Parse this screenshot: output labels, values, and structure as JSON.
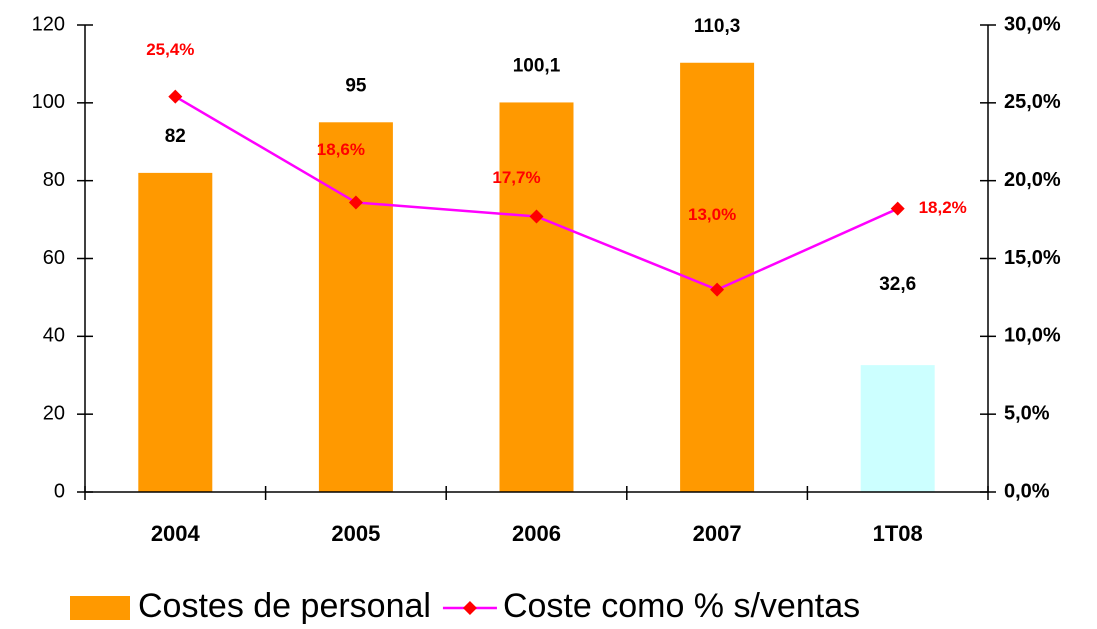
{
  "chart_data": {
    "type": "bar",
    "categories": [
      "2004",
      "2005",
      "2006",
      "2007",
      "1T08"
    ],
    "series": [
      {
        "name": "Costes de personal",
        "type": "bar",
        "color": "#ff9900",
        "colors": [
          "#ff9900",
          "#ff9900",
          "#ff9900",
          "#ff9900",
          "#ccffff"
        ],
        "values": [
          82,
          95,
          100.1,
          110.3,
          32.6
        ],
        "value_labels": [
          "82",
          "95",
          "100,1",
          "110,3",
          "32,6"
        ]
      },
      {
        "name": "Coste como % s/ventas",
        "type": "line",
        "axis": "y2",
        "color": "#ff00ff",
        "marker_color": "#ff0000",
        "values": [
          25.4,
          18.6,
          17.7,
          13.0,
          18.2
        ],
        "value_labels": [
          "25,4%",
          "18,6%",
          "17,7%",
          "13,0%",
          "18,2%"
        ]
      }
    ],
    "ylim": [
      0,
      120
    ],
    "yticks": [
      0,
      20,
      40,
      60,
      80,
      100,
      120
    ],
    "y2lim": [
      0,
      30
    ],
    "y2ticks": [
      {
        "value": 0,
        "label": "0,0%"
      },
      {
        "value": 5,
        "label": "5,0%"
      },
      {
        "value": 10,
        "label": "10,0%"
      },
      {
        "value": 15,
        "label": "15,0%"
      },
      {
        "value": 20,
        "label": "20,0%"
      },
      {
        "value": 25,
        "label": "25,0%"
      },
      {
        "value": 30,
        "label": "30,0%"
      }
    ],
    "legend": "bottom"
  }
}
